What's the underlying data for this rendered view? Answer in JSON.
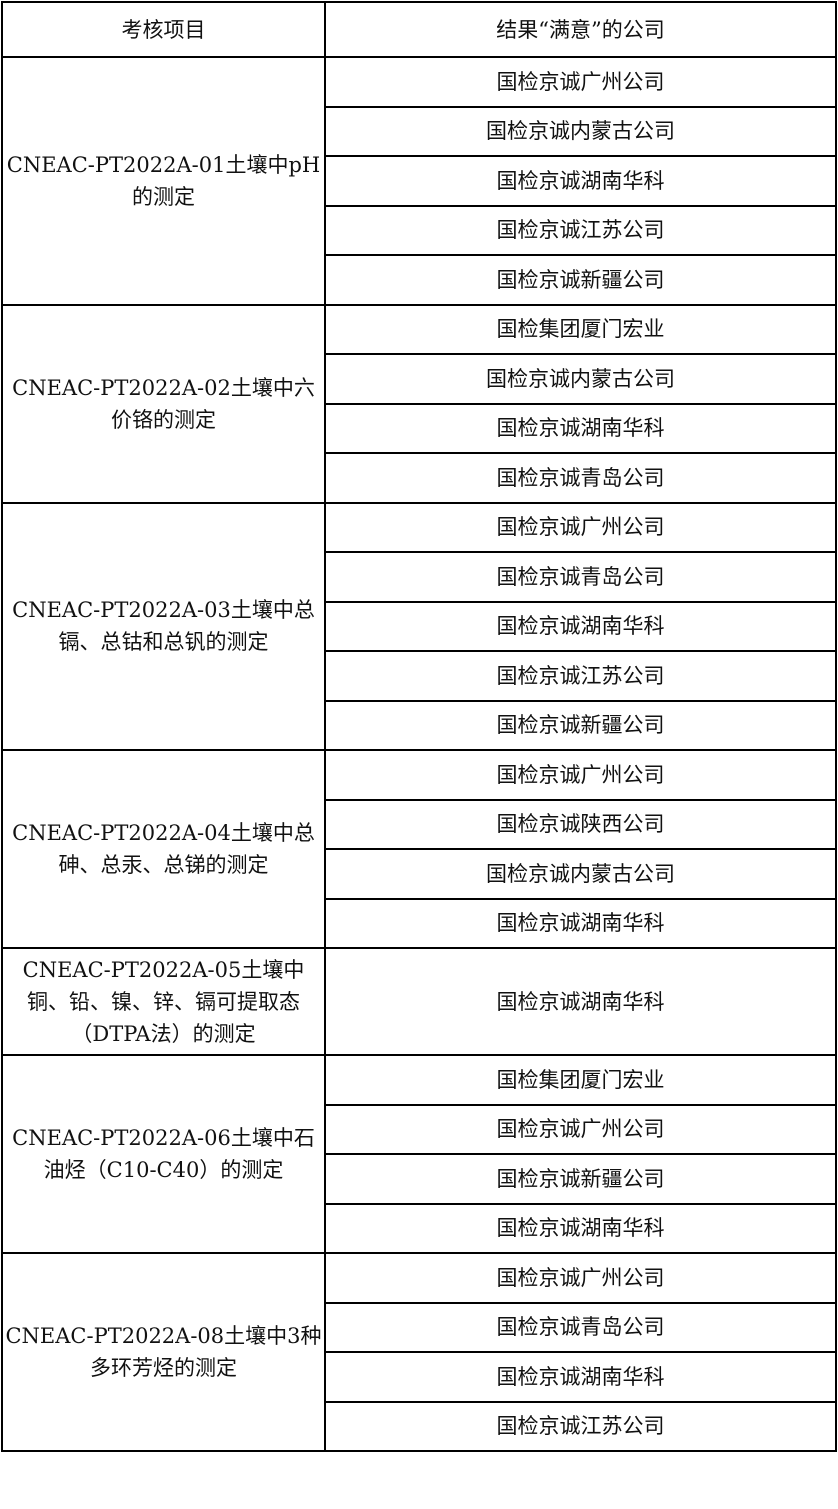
{
  "header": {
    "item": "考核项目",
    "result": "结果“满意”的公司"
  },
  "groups": [
    {
      "item": "CNEAC-PT2022A-01土壤中pH的测定",
      "companies": [
        "国检京诚广州公司",
        "国检京诚内蒙古公司",
        "国检京诚湖南华科",
        "国检京诚江苏公司",
        "国检京诚新疆公司"
      ]
    },
    {
      "item": "CNEAC-PT2022A-02土壤中六价铬的测定",
      "companies": [
        "国检集团厦门宏业",
        "国检京诚内蒙古公司",
        "国检京诚湖南华科",
        "国检京诚青岛公司"
      ]
    },
    {
      "item": "CNEAC-PT2022A-03土壤中总镉、总钴和总钒的测定",
      "companies": [
        "国检京诚广州公司",
        "国检京诚青岛公司",
        "国检京诚湖南华科",
        "国检京诚江苏公司",
        "国检京诚新疆公司"
      ]
    },
    {
      "item": "CNEAC-PT2022A-04土壤中总砷、总汞、总锑的测定",
      "companies": [
        "国检京诚广州公司",
        "国检京诚陕西公司",
        "国检京诚内蒙古公司",
        "国检京诚湖南华科"
      ]
    },
    {
      "item": "CNEAC-PT2022A-05土壤中铜、铅、镍、锌、镉可提取态（DTPA法）的测定",
      "companies": [
        "国检京诚湖南华科"
      ]
    },
    {
      "item": "CNEAC-PT2022A-06土壤中石油烃（C10-C40）的测定",
      "companies": [
        "国检集团厦门宏业",
        "国检京诚广州公司",
        "国检京诚新疆公司",
        "国检京诚湖南华科"
      ]
    },
    {
      "item": "CNEAC-PT2022A-08土壤中3种多环芳烃的测定",
      "companies": [
        "国检京诚广州公司",
        "国检京诚青岛公司",
        "国检京诚湖南华科",
        "国检京诚江苏公司"
      ]
    }
  ]
}
